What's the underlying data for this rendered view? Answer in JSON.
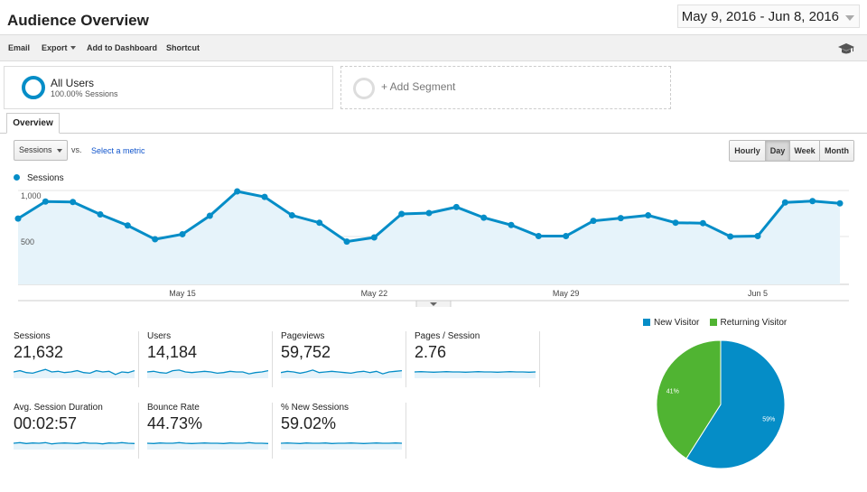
{
  "header": {
    "title": "Audience Overview",
    "date_range": "May 9, 2016 - Jun 8, 2016"
  },
  "toolbar": {
    "email": "Email",
    "export": "Export",
    "add_to_dashboard": "Add to Dashboard",
    "shortcut": "Shortcut"
  },
  "segments": {
    "active_name": "All Users",
    "active_sub": "100.00% Sessions",
    "add_label": "+ Add Segment"
  },
  "tabs": {
    "overview": "Overview"
  },
  "controls": {
    "metric_select": "Sessions",
    "vs": "vs.",
    "select_metric": "Select a metric"
  },
  "granularity": [
    "Hourly",
    "Day",
    "Week",
    "Month"
  ],
  "granularity_active": "Day",
  "colors": {
    "accent": "#058dc7",
    "fill": "#e6f3fa",
    "returning": "#50b432"
  },
  "chart_data": [
    {
      "type": "line",
      "series": [
        {
          "name": "Sessions",
          "x": [
            "2016-05-09",
            "2016-05-10",
            "2016-05-11",
            "2016-05-12",
            "2016-05-13",
            "2016-05-14",
            "2016-05-15",
            "2016-05-16",
            "2016-05-17",
            "2016-05-18",
            "2016-05-19",
            "2016-05-20",
            "2016-05-21",
            "2016-05-22",
            "2016-05-23",
            "2016-05-24",
            "2016-05-25",
            "2016-05-26",
            "2016-05-27",
            "2016-05-28",
            "2016-05-29",
            "2016-05-30",
            "2016-05-31",
            "2016-06-01",
            "2016-06-02",
            "2016-06-03",
            "2016-06-04",
            "2016-06-05",
            "2016-06-06",
            "2016-06-07",
            "2016-06-08"
          ],
          "values": [
            695,
            880,
            875,
            740,
            620,
            470,
            525,
            725,
            990,
            930,
            730,
            650,
            445,
            490,
            745,
            755,
            820,
            705,
            625,
            505,
            505,
            670,
            700,
            730,
            650,
            645,
            500,
            505,
            870,
            885,
            860
          ]
        }
      ],
      "x_tick_labels": [
        "May 15",
        "May 22",
        "May 29",
        "Jun 5"
      ],
      "y_tick_labels": [
        "1,000",
        "500"
      ],
      "ylim": [
        0,
        1000
      ],
      "grid": true,
      "legend": "top-left"
    },
    {
      "type": "pie",
      "labels": [
        "New Visitor",
        "Returning Visitor"
      ],
      "values": [
        59,
        41
      ],
      "data_labels": [
        "59%",
        "41%"
      ],
      "colors": [
        "#058dc7",
        "#50b432"
      ],
      "legend": "top"
    }
  ],
  "scorecards": [
    {
      "label": "Sessions",
      "value": "21,632",
      "spark": [
        0.5,
        0.6,
        0.45,
        0.4,
        0.55,
        0.7,
        0.5,
        0.55,
        0.45,
        0.5,
        0.6,
        0.45,
        0.4,
        0.6,
        0.5,
        0.55,
        0.3,
        0.5,
        0.45,
        0.6
      ]
    },
    {
      "label": "Users",
      "value": "14,184",
      "spark": [
        0.5,
        0.55,
        0.45,
        0.4,
        0.6,
        0.65,
        0.5,
        0.45,
        0.5,
        0.55,
        0.5,
        0.4,
        0.45,
        0.55,
        0.5,
        0.5,
        0.35,
        0.45,
        0.5,
        0.6
      ]
    },
    {
      "label": "Pageviews",
      "value": "59,752",
      "spark": [
        0.45,
        0.55,
        0.5,
        0.4,
        0.5,
        0.65,
        0.45,
        0.5,
        0.55,
        0.5,
        0.45,
        0.4,
        0.5,
        0.55,
        0.45,
        0.55,
        0.35,
        0.5,
        0.55,
        0.6
      ]
    },
    {
      "label": "Pages / Session",
      "value": "2.76",
      "spark": [
        0.5,
        0.52,
        0.5,
        0.48,
        0.5,
        0.52,
        0.5,
        0.5,
        0.48,
        0.5,
        0.52,
        0.5,
        0.5,
        0.48,
        0.5,
        0.52,
        0.5,
        0.5,
        0.48,
        0.5
      ]
    },
    {
      "label": "Avg. Session Duration",
      "value": "00:02:57",
      "spark": [
        0.5,
        0.55,
        0.48,
        0.52,
        0.5,
        0.55,
        0.45,
        0.5,
        0.52,
        0.5,
        0.48,
        0.55,
        0.5,
        0.5,
        0.45,
        0.52,
        0.5,
        0.55,
        0.5,
        0.48
      ]
    },
    {
      "label": "Bounce Rate",
      "value": "44.73%",
      "spark": [
        0.5,
        0.48,
        0.52,
        0.5,
        0.5,
        0.55,
        0.5,
        0.48,
        0.5,
        0.52,
        0.5,
        0.5,
        0.48,
        0.52,
        0.5,
        0.5,
        0.55,
        0.5,
        0.5,
        0.48
      ]
    },
    {
      "label": "% New Sessions",
      "value": "59.02%",
      "spark": [
        0.5,
        0.52,
        0.5,
        0.48,
        0.52,
        0.5,
        0.5,
        0.52,
        0.48,
        0.5,
        0.5,
        0.52,
        0.5,
        0.48,
        0.5,
        0.52,
        0.5,
        0.5,
        0.52,
        0.5
      ]
    }
  ]
}
